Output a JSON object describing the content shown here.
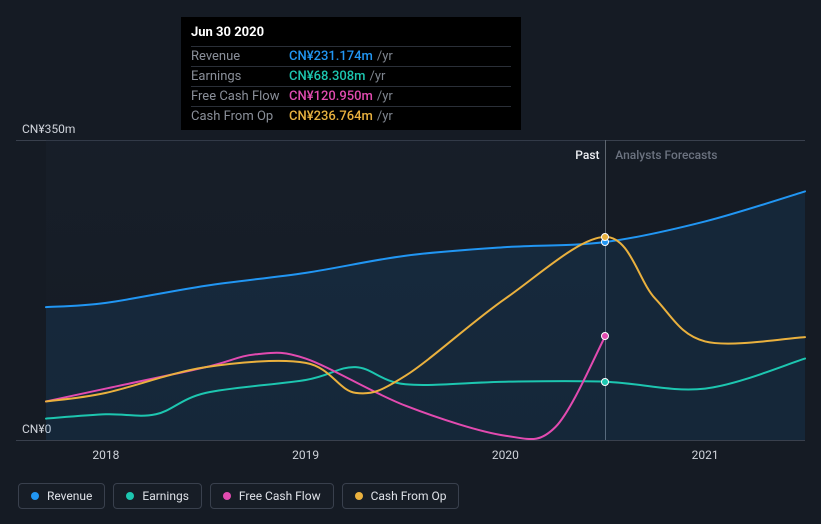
{
  "chart": {
    "type": "line",
    "background": "#151b24",
    "grid_color": "#39404d",
    "y_axis": {
      "min": 0,
      "max": 350,
      "top_label": "CN¥350m",
      "bottom_label": "CN¥0"
    },
    "x_axis": {
      "min": 2017.7,
      "max": 2021.5,
      "ticks": [
        2018,
        2019,
        2020,
        2021
      ]
    },
    "cursor_x": 2020.5,
    "past_label": "Past",
    "forecast_label": "Analysts Forecasts",
    "series": [
      {
        "name": "Revenue",
        "color": "#2196f3",
        "points": [
          [
            2017.7,
            155
          ],
          [
            2018,
            160
          ],
          [
            2018.5,
            180
          ],
          [
            2019,
            195
          ],
          [
            2019.5,
            215
          ],
          [
            2020,
            225
          ],
          [
            2020.5,
            231
          ],
          [
            2021,
            255
          ],
          [
            2021.5,
            290
          ]
        ],
        "fill": true
      },
      {
        "name": "Earnings",
        "color": "#1dc6b0",
        "points": [
          [
            2017.7,
            25
          ],
          [
            2018,
            30
          ],
          [
            2018.25,
            30
          ],
          [
            2018.5,
            55
          ],
          [
            2019,
            70
          ],
          [
            2019.25,
            85
          ],
          [
            2019.5,
            65
          ],
          [
            2020,
            68
          ],
          [
            2020.5,
            68
          ],
          [
            2021,
            60
          ],
          [
            2021.5,
            95
          ]
        ]
      },
      {
        "name": "Free Cash Flow",
        "color": "#e24bb0",
        "points": [
          [
            2017.7,
            45
          ],
          [
            2018,
            60
          ],
          [
            2018.5,
            85
          ],
          [
            2018.75,
            100
          ],
          [
            2019,
            95
          ],
          [
            2019.5,
            40
          ],
          [
            2020,
            5
          ],
          [
            2020.25,
            15
          ],
          [
            2020.5,
            121
          ]
        ]
      },
      {
        "name": "Cash From Op",
        "color": "#eab13e",
        "points": [
          [
            2017.7,
            45
          ],
          [
            2018,
            55
          ],
          [
            2018.5,
            85
          ],
          [
            2019,
            90
          ],
          [
            2019.25,
            55
          ],
          [
            2019.5,
            75
          ],
          [
            2020,
            165
          ],
          [
            2020.5,
            237
          ],
          [
            2020.75,
            165
          ],
          [
            2021,
            115
          ],
          [
            2021.5,
            120
          ]
        ]
      }
    ],
    "markers_at_cursor": [
      {
        "series": "Revenue",
        "y": 231,
        "color": "#2196f3"
      },
      {
        "series": "Earnings",
        "y": 68,
        "color": "#1dc6b0"
      },
      {
        "series": "Free Cash Flow",
        "y": 121,
        "color": "#e24bb0"
      },
      {
        "series": "Cash From Op",
        "y": 237,
        "color": "#eab13e"
      }
    ]
  },
  "tooltip": {
    "date": "Jun 30 2020",
    "suffix": "/yr",
    "rows": [
      {
        "label": "Revenue",
        "value": "CN¥231.174m",
        "color": "#2196f3"
      },
      {
        "label": "Earnings",
        "value": "CN¥68.308m",
        "color": "#1dc6b0"
      },
      {
        "label": "Free Cash Flow",
        "value": "CN¥120.950m",
        "color": "#e24bb0"
      },
      {
        "label": "Cash From Op",
        "value": "CN¥236.764m",
        "color": "#eab13e"
      }
    ]
  },
  "legend": [
    "Revenue",
    "Earnings",
    "Free Cash Flow",
    "Cash From Op"
  ]
}
